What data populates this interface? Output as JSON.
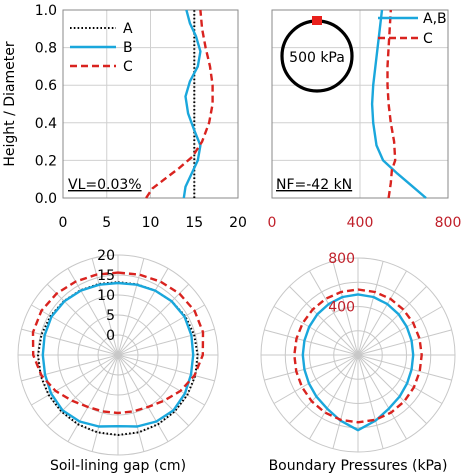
{
  "colors": {
    "A": "#000000",
    "B": "#1aa7dc",
    "C": "#d9231f",
    "tick_red": "#c0202a",
    "grid": "#d0d0d0",
    "polar_grid": "#c8c8c8",
    "frame": "#8a8a8a",
    "marker": "#e8201c"
  },
  "chart_data": [
    {
      "id": "gap-profile",
      "type": "line",
      "ylabel": "Height / Diameter",
      "xlim": [
        0,
        20
      ],
      "ylim": [
        0,
        1
      ],
      "xticks": [
        "0",
        "5",
        "10",
        "15",
        "20"
      ],
      "yticks": [
        "0.0",
        "0.2",
        "0.4",
        "0.6",
        "0.8",
        "1.0"
      ],
      "annotation": "VL=0.03%",
      "legend": "top-left",
      "series": [
        {
          "key": "A",
          "name": "A",
          "style": "dotted",
          "points": [
            [
              15,
              0
            ],
            [
              15,
              0.1
            ],
            [
              15,
              0.2
            ],
            [
              15,
              0.3
            ],
            [
              15,
              0.4
            ],
            [
              15,
              0.5
            ],
            [
              15,
              0.6
            ],
            [
              15,
              0.7
            ],
            [
              15,
              0.8
            ],
            [
              15,
              0.9
            ],
            [
              15,
              1.0
            ]
          ]
        },
        {
          "key": "B",
          "name": "B",
          "style": "solid",
          "points": [
            [
              13.8,
              0
            ],
            [
              14.0,
              0.06
            ],
            [
              14.6,
              0.12
            ],
            [
              15.4,
              0.2
            ],
            [
              15.7,
              0.28
            ],
            [
              15.0,
              0.36
            ],
            [
              14.3,
              0.45
            ],
            [
              14.0,
              0.54
            ],
            [
              14.5,
              0.62
            ],
            [
              15.4,
              0.7
            ],
            [
              15.7,
              0.78
            ],
            [
              15.2,
              0.86
            ],
            [
              14.5,
              0.93
            ],
            [
              14.1,
              1.0
            ]
          ]
        },
        {
          "key": "C",
          "name": "C",
          "style": "dashed",
          "points": [
            [
              9.5,
              0
            ],
            [
              10.2,
              0.05
            ],
            [
              11.6,
              0.1
            ],
            [
              13.3,
              0.16
            ],
            [
              14.8,
              0.22
            ],
            [
              15.9,
              0.3
            ],
            [
              16.7,
              0.4
            ],
            [
              17.1,
              0.5
            ],
            [
              17.1,
              0.6
            ],
            [
              16.8,
              0.7
            ],
            [
              16.3,
              0.8
            ],
            [
              15.9,
              0.9
            ],
            [
              15.7,
              1.0
            ]
          ]
        }
      ]
    },
    {
      "id": "pressure-profile",
      "type": "line",
      "xlim": [
        0,
        800
      ],
      "ylim": [
        0,
        1
      ],
      "xticks": [
        "0",
        "400",
        "800"
      ],
      "annotation": "NF=-42 kN",
      "inset_label": "500 kPa",
      "legend": "top-right",
      "series": [
        {
          "key": "B",
          "name": "A,B",
          "style": "solid",
          "points": [
            [
              700,
              0
            ],
            [
              640,
              0.06
            ],
            [
              570,
              0.13
            ],
            [
              505,
              0.2
            ],
            [
              475,
              0.28
            ],
            [
              460,
              0.4
            ],
            [
              455,
              0.5
            ],
            [
              460,
              0.6
            ],
            [
              470,
              0.7
            ],
            [
              480,
              0.8
            ],
            [
              490,
              0.9
            ],
            [
              500,
              1.0
            ]
          ]
        },
        {
          "key": "C",
          "name": "C",
          "style": "dashed",
          "points": [
            [
              530,
              0
            ],
            [
              540,
              0.08
            ],
            [
              545,
              0.15
            ],
            [
              560,
              0.2
            ],
            [
              555,
              0.3
            ],
            [
              540,
              0.4
            ],
            [
              530,
              0.5
            ],
            [
              525,
              0.6
            ],
            [
              525,
              0.7
            ],
            [
              530,
              0.8
            ],
            [
              535,
              0.9
            ],
            [
              540,
              1.0
            ]
          ]
        }
      ]
    },
    {
      "id": "gap-polar",
      "type": "polar",
      "xlabel": "Soil-lining gap (cm)",
      "rlim": [
        -5,
        20
      ],
      "rticks": [
        "0",
        "5",
        "10",
        "15",
        "20"
      ],
      "spokes": 24,
      "series": [
        {
          "key": "A",
          "style": "dotted",
          "r": [
            13.2,
            13.3,
            13.6,
            14.0,
            14.4,
            14.7,
            14.9,
            15.0,
            15.0,
            15.0,
            15.0,
            15.0,
            15.0,
            15.0,
            15.0,
            15.0,
            15.0,
            15.0,
            15.0,
            14.8,
            14.5,
            14.1,
            13.7,
            13.4
          ]
        },
        {
          "key": "B",
          "style": "solid",
          "r": [
            13.0,
            13.2,
            13.6,
            14.0,
            14.2,
            14.0,
            13.8,
            13.9,
            14.3,
            14.6,
            14.2,
            13.5,
            12.8,
            13.5,
            14.2,
            14.6,
            14.3,
            13.9,
            13.8,
            14.0,
            14.2,
            14.0,
            13.6,
            13.2
          ]
        },
        {
          "key": "C",
          "style": "dashed",
          "r": [
            15.6,
            15.8,
            16.2,
            16.7,
            17.1,
            17.0,
            16.2,
            14.8,
            13.0,
            11.2,
            10.0,
            9.6,
            9.5,
            9.6,
            10.0,
            11.2,
            13.0,
            14.8,
            16.2,
            17.0,
            17.1,
            16.7,
            16.2,
            15.8
          ]
        }
      ]
    },
    {
      "id": "pressure-polar",
      "type": "polar",
      "xlabel": "Boundary Pressures (kPa)",
      "rlim": [
        0,
        800
      ],
      "rticks": [
        "400",
        "800"
      ],
      "spokes": 24,
      "series": [
        {
          "key": "B",
          "style": "solid",
          "r": [
            500,
            495,
            485,
            475,
            465,
            458,
            455,
            458,
            468,
            485,
            510,
            560,
            620,
            560,
            510,
            485,
            468,
            458,
            455,
            458,
            465,
            475,
            485,
            495
          ]
        },
        {
          "key": "C",
          "style": "dashed",
          "r": [
            540,
            538,
            535,
            530,
            527,
            525,
            525,
            527,
            532,
            540,
            548,
            553,
            555,
            553,
            548,
            540,
            532,
            527,
            525,
            525,
            527,
            530,
            535,
            538
          ]
        }
      ]
    }
  ]
}
